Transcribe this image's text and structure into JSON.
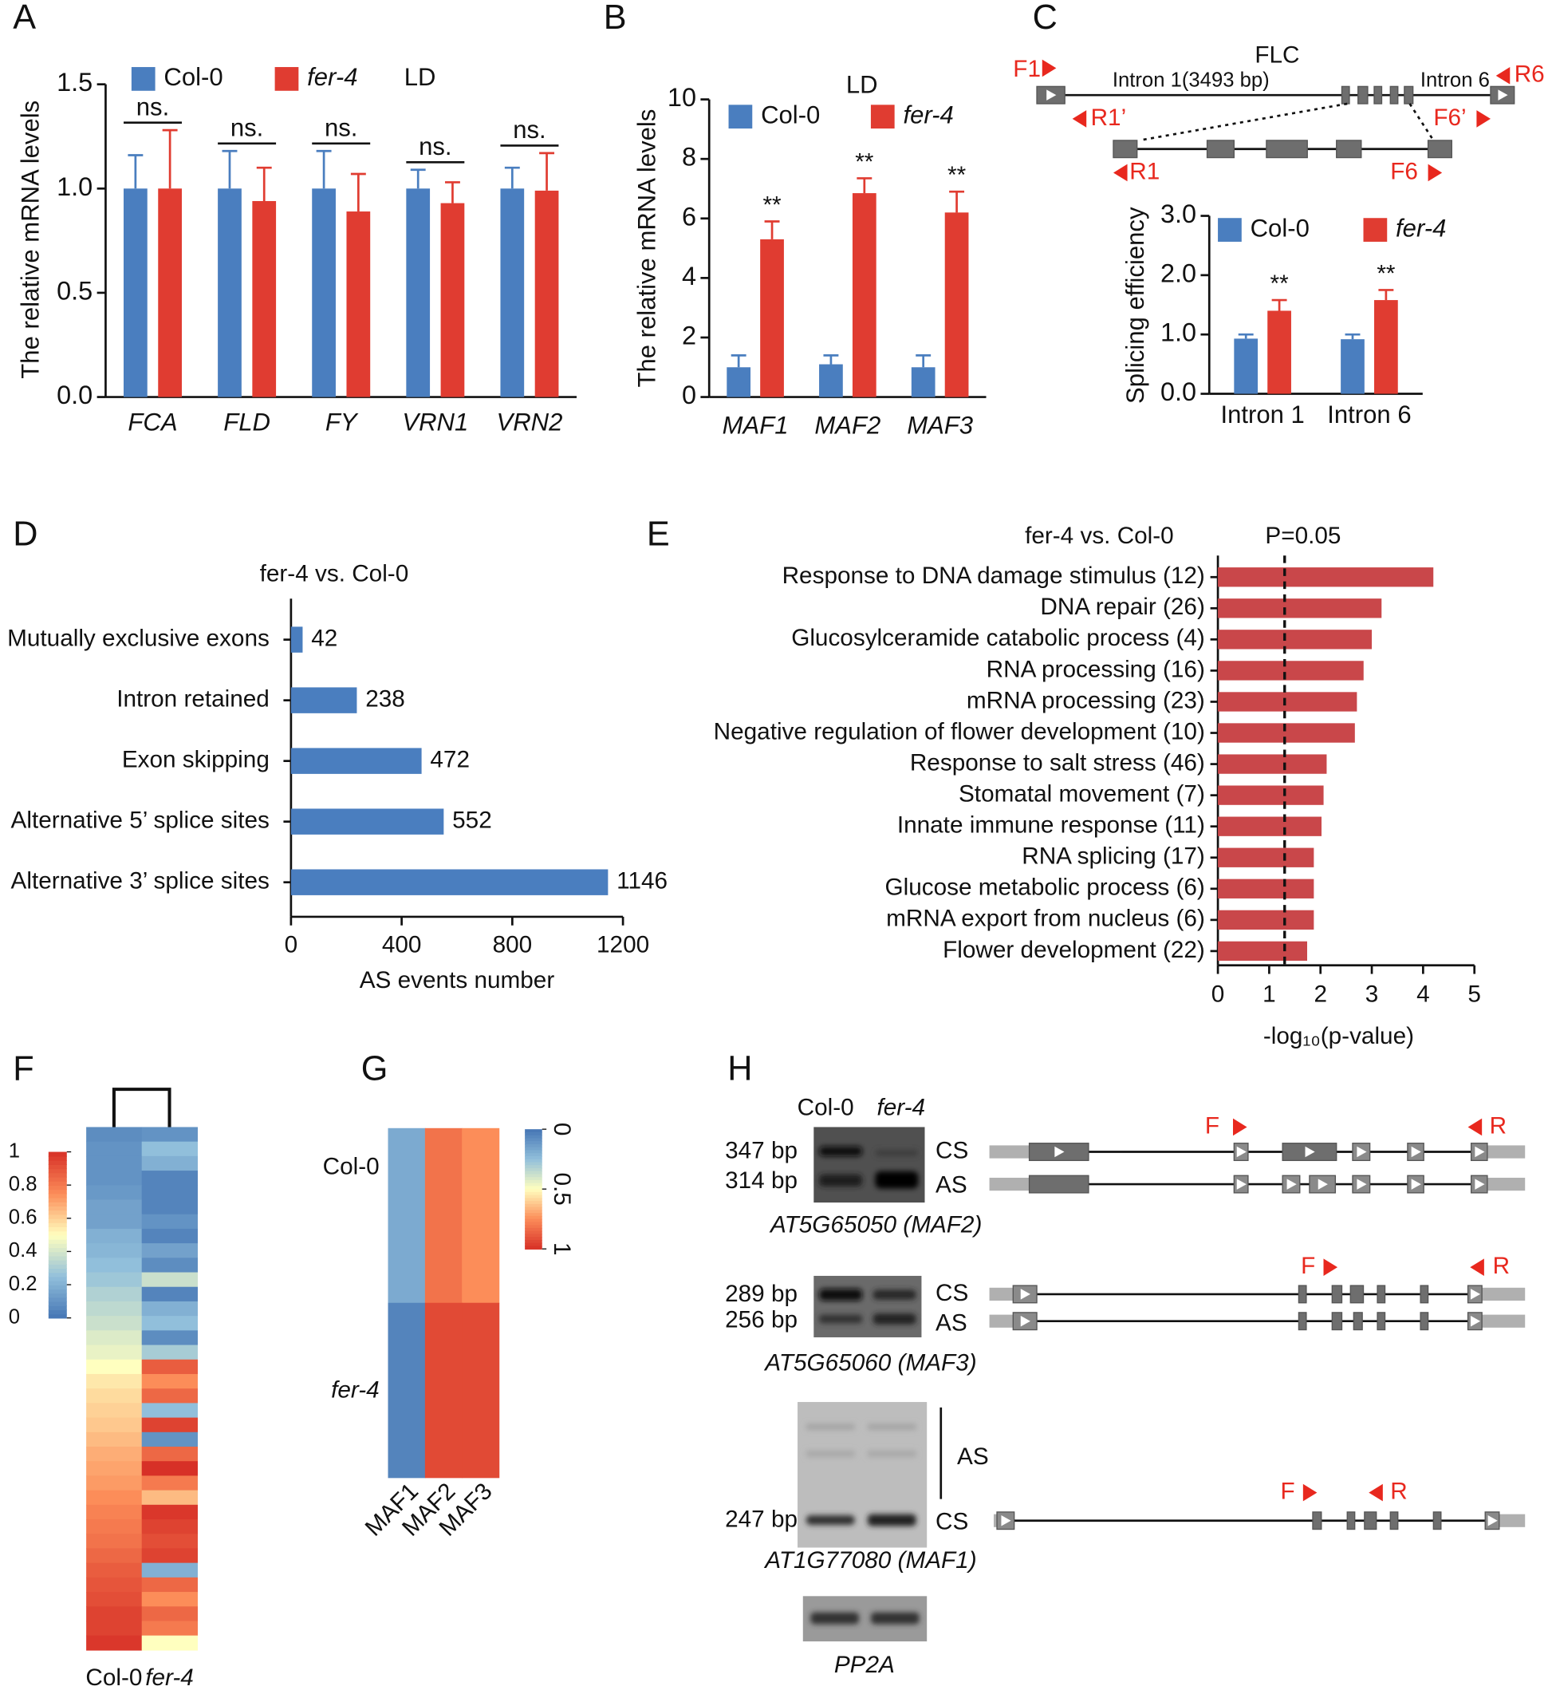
{
  "chart_data": [
    {
      "panel": "A",
      "type": "bar",
      "condition": "LD",
      "ylabel": "The relative mRNA levels",
      "categories": [
        "FCA",
        "FLD",
        "FY",
        "VRN1",
        "VRN2"
      ],
      "series": [
        {
          "name": "Col-0",
          "color": "#4a7ebf",
          "values": [
            1,
            1,
            1,
            1,
            1
          ],
          "errors": [
            0.16,
            0.18,
            0.18,
            0.09,
            0.1
          ]
        },
        {
          "name": "fer-4",
          "color": "#e03c31",
          "values": [
            1,
            0.94,
            0.89,
            0.93,
            0.99
          ],
          "errors": [
            0.28,
            0.16,
            0.18,
            0.1,
            0.18
          ]
        }
      ],
      "annotations": [
        "ns.",
        "ns.",
        "ns.",
        "ns.",
        "ns."
      ],
      "ylim": [
        0,
        1.5
      ],
      "yticks": [
        {
          "value": 0,
          "label": "0.0"
        },
        {
          "value": 0.5,
          "label": "0.5"
        },
        {
          "value": 1,
          "label": "1.0"
        },
        {
          "value": 1.5,
          "label": "1.5"
        }
      ]
    },
    {
      "panel": "B",
      "type": "bar",
      "condition": "LD",
      "ylabel": "The relative mRNA levels",
      "categories": [
        "MAF1",
        "MAF2",
        "MAF3"
      ],
      "series": [
        {
          "name": "Col-0",
          "color": "#4a7ebf",
          "values": [
            1,
            1.1,
            1
          ],
          "errors": [
            0.4,
            0.3,
            0.4
          ]
        },
        {
          "name": "fer-4",
          "color": "#e03c31",
          "values": [
            5.3,
            6.85,
            6.2
          ],
          "errors": [
            0.6,
            0.5,
            0.7
          ]
        }
      ],
      "annotations": [
        "**",
        "**",
        "**"
      ],
      "ylim": [
        0,
        10
      ],
      "yticks": [
        0,
        2,
        4,
        6,
        8,
        10
      ]
    },
    {
      "panel": "C",
      "type": "bar",
      "ylabel": "Splicing efficiency",
      "categories": [
        "Intron 1",
        "Intron 6"
      ],
      "series": [
        {
          "name": "Col-0",
          "color": "#4a7ebf",
          "values": [
            0.93,
            0.92
          ],
          "errors": [
            0.07,
            0.08
          ]
        },
        {
          "name": "fer-4",
          "color": "#e03c31",
          "values": [
            1.4,
            1.58
          ],
          "errors": [
            0.18,
            0.17
          ]
        }
      ],
      "annotations": [
        "**",
        "**"
      ],
      "ylim": [
        0,
        3
      ],
      "yticks": [
        {
          "value": 0,
          "label": "0.0"
        },
        {
          "value": 1,
          "label": "1.0"
        },
        {
          "value": 2,
          "label": "2.0"
        },
        {
          "value": 3,
          "label": "3.0"
        }
      ],
      "diagram": {
        "gene": "FLC",
        "intron1": "Intron 1(3493 bp)",
        "intron6": "Intron 6",
        "primers": [
          "F1",
          "R6",
          "R1’",
          "F6’",
          "R1",
          "F6"
        ]
      }
    },
    {
      "panel": "D",
      "type": "barh",
      "title": "fer-4 vs. Col-0",
      "xlabel": "AS events number",
      "categories": [
        "Mutually exclusive exons",
        "Intron retained",
        "Exon skipping",
        "Alternative 5’ splice sites",
        "Alternative 3’ splice sites"
      ],
      "values": [
        42,
        238,
        472,
        552,
        1146
      ],
      "color": "#4a7ebf",
      "xlim": [
        0,
        1200
      ],
      "xticks": [
        0,
        400,
        800,
        1200
      ]
    },
    {
      "panel": "E",
      "type": "barh",
      "title": "fer-4 vs. Col-0",
      "xlabel": "-log₁₀(p-value)",
      "categories": [
        "Response to DNA damage stimulus (12)",
        "DNA repair (26)",
        "Glucosylceramide catabolic process (4)",
        "RNA processing (16)",
        "mRNA processing (23)",
        "Negative regulation of flower development (10)",
        "Response to salt stress (46)",
        "Stomatal movement (7)",
        "Innate immune response (11)",
        "RNA splicing (17)",
        "Glucose metabolic process (6)",
        "mRNA export from nucleus (6)",
        "Flower development (22)"
      ],
      "values": [
        4.2,
        3.19,
        3.0,
        2.84,
        2.71,
        2.67,
        2.12,
        2.06,
        2.02,
        1.87,
        1.87,
        1.87,
        1.74
      ],
      "color": "#c9474a",
      "xlim": [
        0,
        5
      ],
      "xticks": [
        0,
        1,
        2,
        3,
        4,
        5
      ],
      "threshold": 1.301,
      "threshold_label": "P=0.05"
    },
    {
      "panel": "F",
      "type": "heatmap",
      "columns": [
        "Col-0",
        "fer-4"
      ],
      "values": [
        [
          0.08,
          0.1
        ],
        [
          0.1,
          0.25
        ],
        [
          0.1,
          0.2
        ],
        [
          0.1,
          0.05
        ],
        [
          0.12,
          0.05
        ],
        [
          0.15,
          0.05
        ],
        [
          0.15,
          0.1
        ],
        [
          0.2,
          0.05
        ],
        [
          0.22,
          0.15
        ],
        [
          0.25,
          0.08
        ],
        [
          0.28,
          0.38
        ],
        [
          0.32,
          0.05
        ],
        [
          0.35,
          0.2
        ],
        [
          0.38,
          0.25
        ],
        [
          0.42,
          0.08
        ],
        [
          0.45,
          0.3
        ],
        [
          0.5,
          0.88
        ],
        [
          0.55,
          0.75
        ],
        [
          0.58,
          0.85
        ],
        [
          0.6,
          0.25
        ],
        [
          0.62,
          0.95
        ],
        [
          0.65,
          0.1
        ],
        [
          0.68,
          0.85
        ],
        [
          0.7,
          1.0
        ],
        [
          0.72,
          0.8
        ],
        [
          0.75,
          0.65
        ],
        [
          0.78,
          0.98
        ],
        [
          0.8,
          0.95
        ],
        [
          0.82,
          0.92
        ],
        [
          0.85,
          0.95
        ],
        [
          0.88,
          0.2
        ],
        [
          0.9,
          0.85
        ],
        [
          0.92,
          0.75
        ],
        [
          0.95,
          0.85
        ],
        [
          0.95,
          0.8
        ],
        [
          0.98,
          0.5
        ]
      ],
      "clim": [
        0,
        1
      ],
      "colorbar_ticks": [
        0,
        0.2,
        0.4,
        0.6,
        0.8,
        1
      ],
      "colormap": [
        "#4575b4",
        "#91bfdb",
        "#ffffbf",
        "#fc8d59",
        "#d73027"
      ]
    },
    {
      "panel": "G",
      "type": "heatmap",
      "rows": [
        "Col-0",
        "fer-4"
      ],
      "columns": [
        "MAF1",
        "MAF2",
        "MAF3"
      ],
      "values": [
        [
          0.18,
          0.82,
          0.75
        ],
        [
          0.05,
          0.93,
          0.93
        ]
      ],
      "clim": [
        0,
        1
      ],
      "colorbar_ticks": [
        0,
        0.5,
        1
      ],
      "colormap": [
        "#4575b4",
        "#91bfdb",
        "#ffffbf",
        "#fc8d59",
        "#d73027"
      ]
    }
  ],
  "gel_panel": {
    "panel": "H",
    "lanes": [
      "Col-0",
      "fer-4"
    ],
    "gels": [
      {
        "sizes": [
          "347 bp",
          "314 bp"
        ],
        "isoforms": [
          "CS",
          "AS"
        ],
        "gene": "AT5G65050 (MAF2)",
        "primers": [
          "F",
          "R"
        ]
      },
      {
        "sizes": [
          "289 bp",
          "256 bp"
        ],
        "isoforms": [
          "CS",
          "AS"
        ],
        "gene": "AT5G65060 (MAF3)",
        "primers": [
          "F",
          "R"
        ]
      },
      {
        "sizes": [
          "247 bp"
        ],
        "isoforms": [
          "AS",
          "CS"
        ],
        "gene": "AT1G77080 (MAF1)",
        "primers": [
          "F",
          "R"
        ]
      },
      {
        "gene": "PP2A"
      }
    ]
  }
}
